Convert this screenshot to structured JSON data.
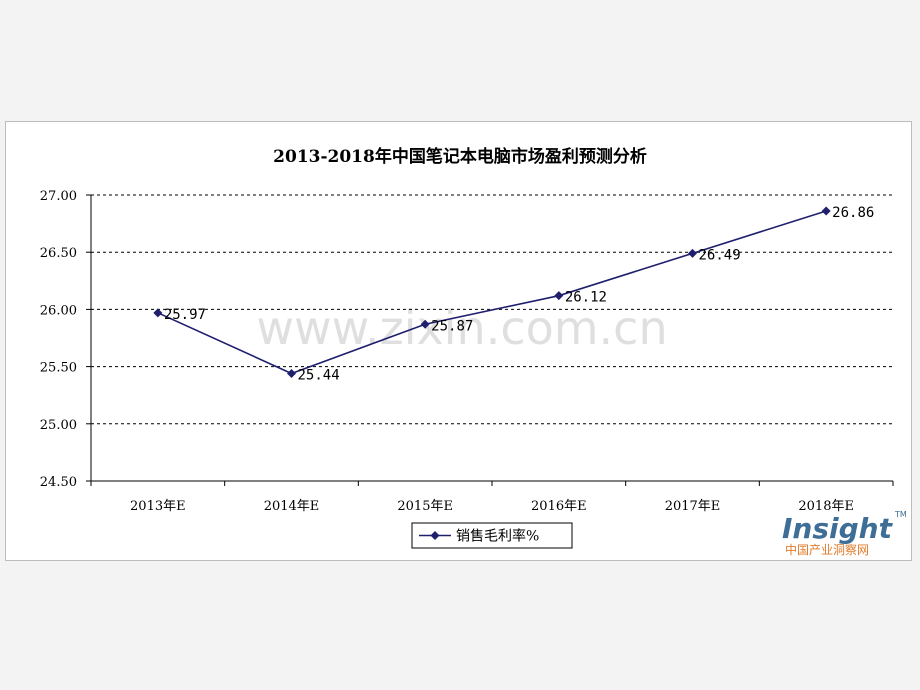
{
  "chart_data": {
    "type": "line",
    "title": "2013-2018年中国笔记本电脑市场盈利预测分析",
    "categories": [
      "2013年E",
      "2014年E",
      "2015年E",
      "2016年E",
      "2017年E",
      "2018年E"
    ],
    "series": [
      {
        "name": "销售毛利率%",
        "values": [
          25.97,
          25.44,
          25.87,
          26.12,
          26.49,
          26.86
        ],
        "labels": [
          "25.97",
          "25.44",
          "25.87",
          "26.12",
          "26.49",
          "26.86"
        ],
        "color": "#1f1f6e"
      }
    ],
    "yticks": [
      "27.00",
      "26.50",
      "26.00",
      "25.50",
      "25.00",
      "24.50"
    ],
    "ylim": [
      24.5,
      27.0
    ],
    "grid": true,
    "legend": "bottom"
  },
  "watermark": "www.zixin.com.cn",
  "logo": {
    "main": "Insight",
    "sub": "中国产业洞察网",
    "tm": "TM"
  }
}
